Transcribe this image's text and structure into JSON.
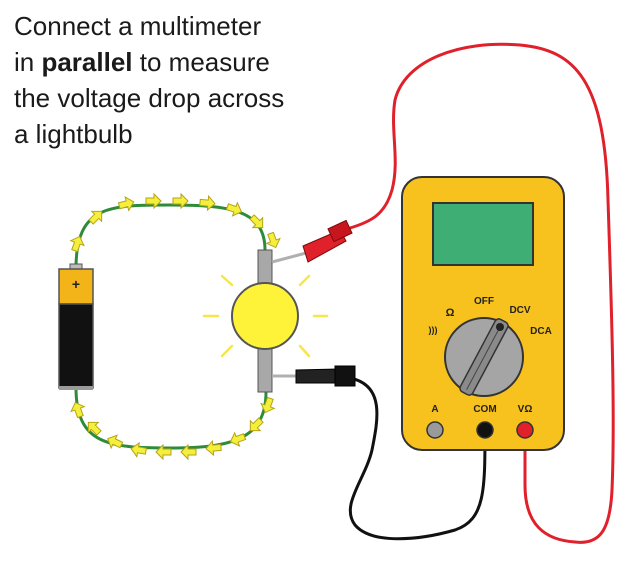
{
  "caption": {
    "line1": "Connect a multimeter",
    "line2_prefix": "in ",
    "line2_bold": "parallel",
    "line2_suffix": " to measure",
    "line3": "the voltage drop across",
    "line4": "a lightbulb"
  },
  "battery": {
    "terminal_label": "+"
  },
  "multimeter": {
    "dial_labels": {
      "ohm": "Ω",
      "off": "OFF",
      "dcv": "DCV",
      "dca": "DCA",
      "continuity": ")))"
    },
    "ports": {
      "a": "A",
      "com": "COM",
      "vohm": "VΩ"
    }
  },
  "colors": {
    "meter_body": "#f7c21d",
    "meter_screen": "#3fae74",
    "dial": "#a5a5a5",
    "red_lead": "#e0202a",
    "black_lead": "#111111",
    "circuit_wire": "#2e8b3a",
    "current_arrow": "#f3ef3a",
    "bulb": "#fff33a",
    "battery_top": "#f3b41a",
    "battery_body": "#111111"
  }
}
